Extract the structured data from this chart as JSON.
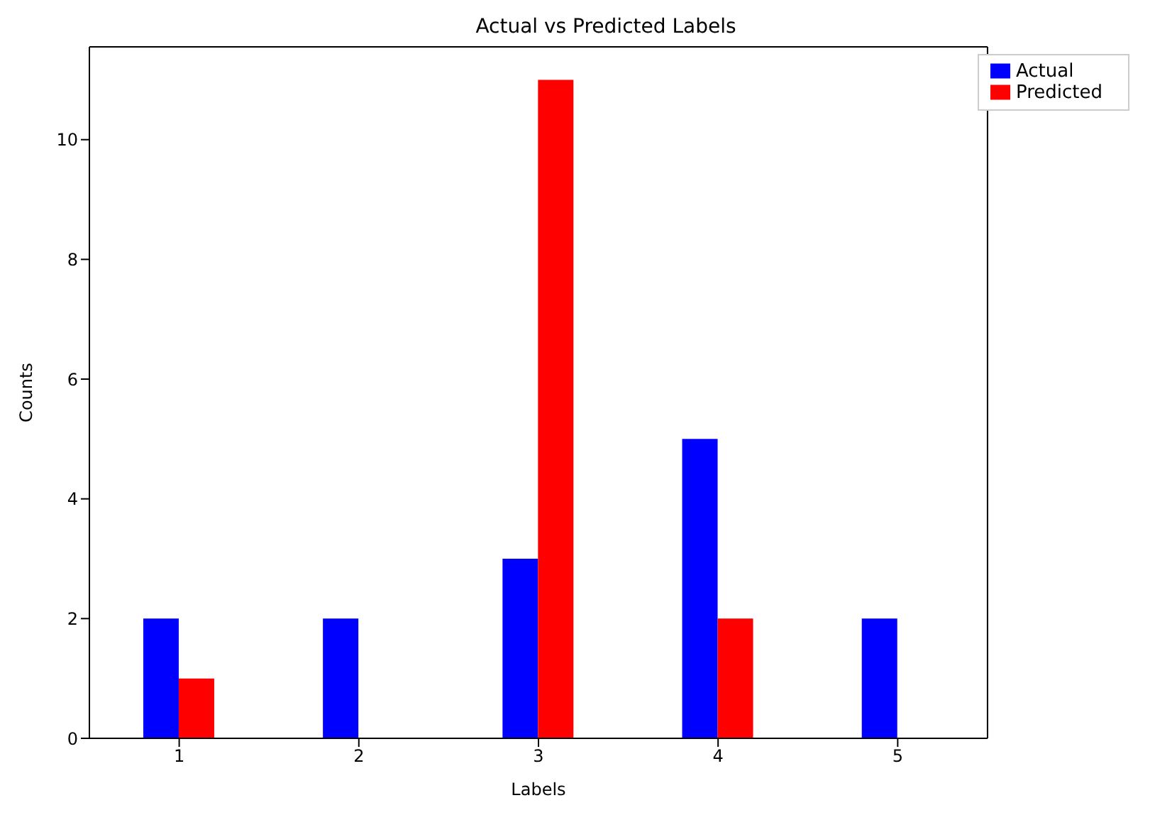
{
  "chart_data": {
    "type": "bar",
    "title": "Actual vs Predicted Labels",
    "xlabel": "Labels",
    "ylabel": "Counts",
    "categories": [
      "1",
      "2",
      "3",
      "4",
      "5"
    ],
    "series": [
      {
        "name": "Actual",
        "color": "#0000ff",
        "values": [
          2,
          2,
          3,
          5,
          2
        ]
      },
      {
        "name": "Predicted",
        "color": "#ff0000",
        "values": [
          1,
          0,
          11,
          2,
          0
        ]
      }
    ],
    "ylim": [
      0,
      11.55
    ],
    "yticks": [
      0,
      2,
      4,
      6,
      8,
      10
    ],
    "grid": false,
    "legend": "top right"
  }
}
